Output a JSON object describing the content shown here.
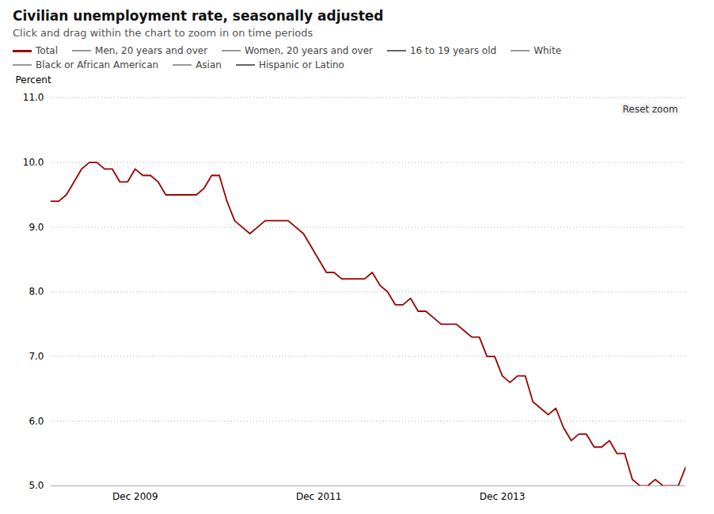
{
  "chart_data": {
    "type": "line",
    "title": "Civilian unemployment rate, seasonally adjusted",
    "subtitle": "Click and drag within the chart to zoom in on time periods",
    "y_label": "Percent",
    "annotations": [
      "Reset zoom"
    ],
    "categories": [
      null,
      null,
      null,
      null,
      null,
      null,
      null,
      null,
      null,
      null,
      null,
      "Dec 2009",
      null,
      null,
      null,
      null,
      null,
      null,
      null,
      null,
      null,
      null,
      null,
      null,
      null,
      null,
      null,
      null,
      null,
      null,
      null,
      null,
      null,
      null,
      null,
      "Dec 2011",
      null,
      null,
      null,
      null,
      null,
      null,
      null,
      null,
      null,
      null,
      null,
      null,
      null,
      null,
      null,
      null,
      null,
      null,
      null,
      null,
      null,
      null,
      null,
      "Dec 2013",
      null,
      null,
      null,
      null,
      null,
      null,
      null,
      null,
      null,
      null,
      null,
      null,
      null,
      null,
      null,
      null,
      null,
      null,
      null,
      null,
      null,
      null,
      null,
      null
    ],
    "series": [
      {
        "name": "Total",
        "color": "#9b0000",
        "values": [
          9.4,
          9.4,
          9.5,
          9.7,
          9.9,
          10.0,
          10.0,
          9.9,
          9.9,
          9.7,
          9.7,
          9.9,
          9.8,
          9.8,
          9.7,
          9.5,
          9.5,
          9.5,
          9.5,
          9.5,
          9.6,
          9.8,
          9.8,
          9.4,
          9.1,
          9.0,
          8.9,
          9.0,
          9.1,
          9.1,
          9.1,
          9.1,
          9.0,
          8.9,
          8.7,
          8.5,
          8.3,
          8.3,
          8.2,
          8.2,
          8.2,
          8.2,
          8.3,
          8.1,
          8.0,
          7.8,
          7.8,
          7.9,
          7.7,
          7.7,
          7.6,
          7.5,
          7.5,
          7.5,
          7.4,
          7.3,
          7.3,
          7.0,
          7.0,
          6.7,
          6.6,
          6.7,
          6.7,
          6.3,
          6.2,
          6.1,
          6.2,
          5.9,
          5.7,
          5.8,
          5.8,
          5.6,
          5.6,
          5.7,
          5.5,
          5.5,
          5.1,
          5.0,
          5.0,
          5.1,
          5.0,
          5.0,
          5.0,
          5.3
        ]
      },
      {
        "name": "Men, 20 years and over",
        "color": "#999999",
        "values": null
      },
      {
        "name": "Women, 20 years and over",
        "color": "#999999",
        "values": null
      },
      {
        "name": "16 to 19 years old",
        "color": "#666666",
        "values": null
      },
      {
        "name": "White",
        "color": "#999999",
        "values": null
      },
      {
        "name": "Black or African American",
        "color": "#999999",
        "values": null
      },
      {
        "name": "Asian",
        "color": "#999999",
        "values": null
      },
      {
        "name": "Hispanic or Latino",
        "color": "#666666",
        "values": null
      }
    ],
    "ylim": [
      5.0,
      11.0
    ],
    "yticks": [
      {
        "value": 5.0,
        "label": "5.0"
      },
      {
        "value": 6.0,
        "label": "6.0"
      },
      {
        "value": 7.0,
        "label": "7.0"
      },
      {
        "value": 8.0,
        "label": "8.0"
      },
      {
        "value": 9.0,
        "label": "9.0"
      },
      {
        "value": 10.0,
        "label": "10.0"
      },
      {
        "value": 11.0,
        "label": "11.0"
      }
    ],
    "grid": true,
    "legend": "top"
  }
}
